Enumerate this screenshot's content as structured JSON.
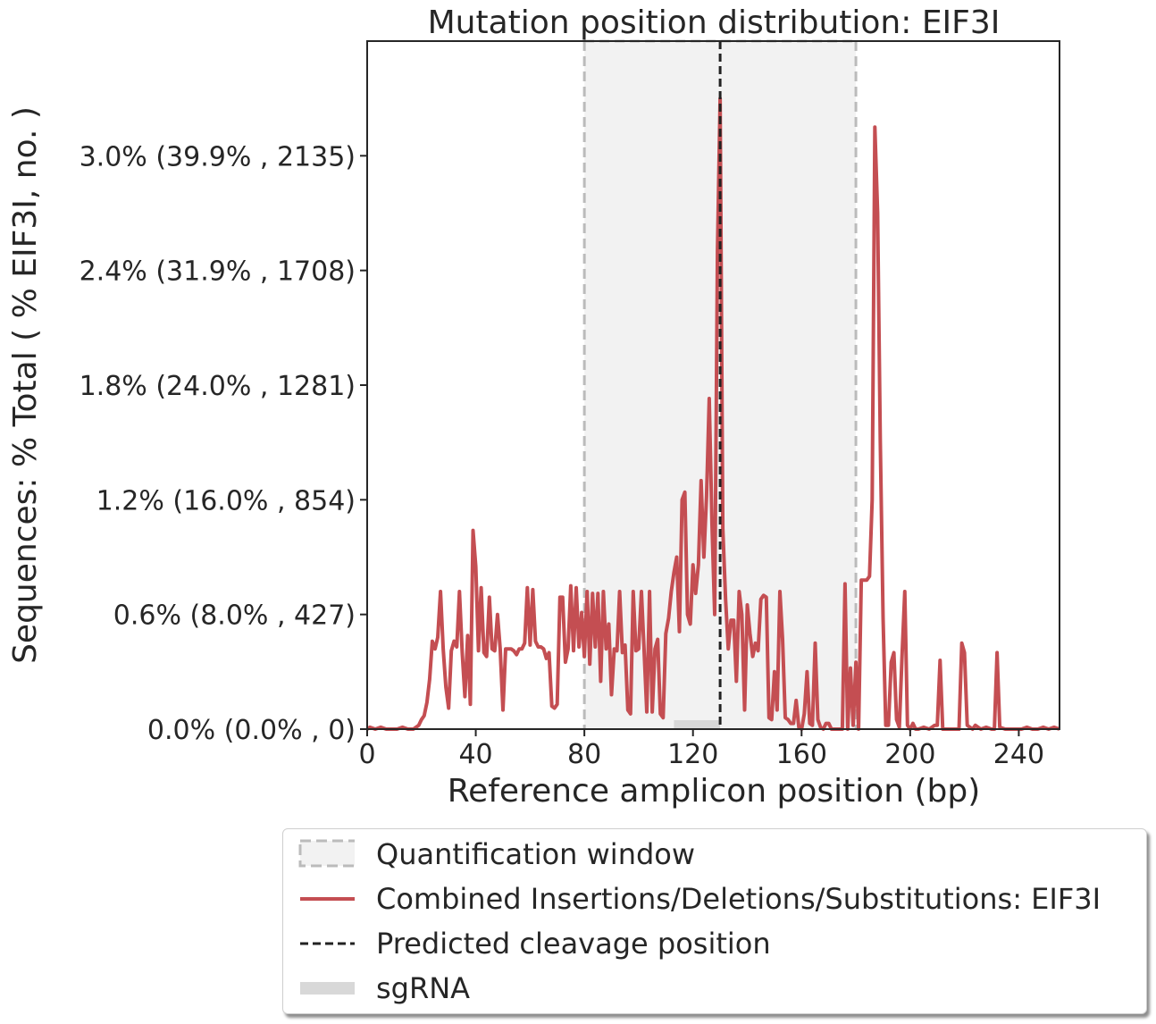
{
  "chart_data": {
    "type": "line",
    "title": "Mutation position distribution: EIF3I",
    "xlabel": "Reference amplicon position (bp)",
    "ylabel": "Sequences: % Total ( % EIF3I, no. )",
    "xlim": [
      0,
      255
    ],
    "ylim": [
      0,
      3.6
    ],
    "x_ticks": [
      0,
      40,
      80,
      120,
      160,
      200,
      240
    ],
    "y_ticks": [
      {
        "value": 0.0,
        "label": "0.0% (0.0% , 0)"
      },
      {
        "value": 0.6,
        "label": "0.6% (8.0% , 427)"
      },
      {
        "value": 1.2,
        "label": "1.2% (16.0% , 854)"
      },
      {
        "value": 1.8,
        "label": "1.8% (24.0% , 1281)"
      },
      {
        "value": 2.4,
        "label": "2.4% (31.9% , 1708)"
      },
      {
        "value": 3.0,
        "label": "3.0% (39.9% , 2135)"
      }
    ],
    "quantification_window": [
      80,
      180
    ],
    "predicted_cleavage": 130,
    "sgrna": [
      113,
      130
    ],
    "colors": {
      "series": "#c44e52",
      "window_fill": "#f2f2f2",
      "window_edge": "#bbbbbb",
      "cleavage": "#222222",
      "sgrna": "#d8d8d8"
    },
    "series": [
      {
        "name": "Combined Insertions/Deletions/Substitutions: EIF3I",
        "points": [
          [
            0,
            0.0
          ],
          [
            1,
            0.01
          ],
          [
            3,
            0.0
          ],
          [
            5,
            0.01
          ],
          [
            7,
            0.0
          ],
          [
            9,
            0.0
          ],
          [
            11,
            0.0
          ],
          [
            13,
            0.01
          ],
          [
            15,
            0.0
          ],
          [
            17,
            0.0
          ],
          [
            19,
            0.02
          ],
          [
            20,
            0.05
          ],
          [
            21,
            0.07
          ],
          [
            22,
            0.14
          ],
          [
            23,
            0.26
          ],
          [
            24,
            0.46
          ],
          [
            25,
            0.42
          ],
          [
            26,
            0.48
          ],
          [
            27,
            0.72
          ],
          [
            28,
            0.42
          ],
          [
            29,
            0.22
          ],
          [
            30,
            0.11
          ],
          [
            31,
            0.41
          ],
          [
            32,
            0.46
          ],
          [
            33,
            0.43
          ],
          [
            34,
            0.72
          ],
          [
            35,
            0.4
          ],
          [
            36,
            0.17
          ],
          [
            37,
            0.49
          ],
          [
            38,
            0.13
          ],
          [
            39,
            1.04
          ],
          [
            40,
            0.85
          ],
          [
            41,
            0.41
          ],
          [
            42,
            0.74
          ],
          [
            43,
            0.4
          ],
          [
            44,
            0.38
          ],
          [
            45,
            0.69
          ],
          [
            46,
            0.42
          ],
          [
            47,
            0.41
          ],
          [
            48,
            0.6
          ],
          [
            49,
            0.42
          ],
          [
            50,
            0.1
          ],
          [
            51,
            0.42
          ],
          [
            52,
            0.42
          ],
          [
            53,
            0.42
          ],
          [
            54,
            0.41
          ],
          [
            55,
            0.39
          ],
          [
            56,
            0.42
          ],
          [
            57,
            0.42
          ],
          [
            58,
            0.45
          ],
          [
            59,
            0.74
          ],
          [
            60,
            0.44
          ],
          [
            61,
            0.73
          ],
          [
            62,
            0.46
          ],
          [
            63,
            0.43
          ],
          [
            64,
            0.43
          ],
          [
            65,
            0.42
          ],
          [
            66,
            0.37
          ],
          [
            67,
            0.4
          ],
          [
            68,
            0.12
          ],
          [
            69,
            0.11
          ],
          [
            70,
            0.13
          ],
          [
            71,
            0.69
          ],
          [
            72,
            0.69
          ],
          [
            73,
            0.35
          ],
          [
            74,
            0.42
          ],
          [
            75,
            0.75
          ],
          [
            76,
            0.41
          ],
          [
            77,
            0.74
          ],
          [
            78,
            0.43
          ],
          [
            79,
            0.61
          ],
          [
            80,
            0.38
          ],
          [
            81,
            0.72
          ],
          [
            82,
            0.34
          ],
          [
            83,
            0.71
          ],
          [
            84,
            0.43
          ],
          [
            85,
            0.71
          ],
          [
            86,
            0.25
          ],
          [
            87,
            0.72
          ],
          [
            88,
            0.42
          ],
          [
            89,
            0.55
          ],
          [
            90,
            0.18
          ],
          [
            91,
            0.42
          ],
          [
            92,
            0.41
          ],
          [
            93,
            0.72
          ],
          [
            94,
            0.4
          ],
          [
            95,
            0.44
          ],
          [
            96,
            0.1
          ],
          [
            97,
            0.08
          ],
          [
            98,
            0.72
          ],
          [
            99,
            0.41
          ],
          [
            100,
            0.42
          ],
          [
            101,
            0.72
          ],
          [
            102,
            0.41
          ],
          [
            103,
            0.09
          ],
          [
            104,
            0.72
          ],
          [
            105,
            0.09
          ],
          [
            106,
            0.42
          ],
          [
            107,
            0.47
          ],
          [
            108,
            0.08
          ],
          [
            109,
            0.06
          ],
          [
            110,
            0.5
          ],
          [
            111,
            0.58
          ],
          [
            112,
            0.72
          ],
          [
            113,
            0.82
          ],
          [
            114,
            0.9
          ],
          [
            115,
            0.51
          ],
          [
            116,
            1.2
          ],
          [
            117,
            1.24
          ],
          [
            118,
            0.6
          ],
          [
            119,
            0.55
          ],
          [
            120,
            0.86
          ],
          [
            121,
            0.71
          ],
          [
            122,
            0.86
          ],
          [
            123,
            1.3
          ],
          [
            124,
            0.9
          ],
          [
            125,
            1.22
          ],
          [
            126,
            1.73
          ],
          [
            127,
            1.07
          ],
          [
            128,
            0.6
          ],
          [
            129,
            2.5
          ],
          [
            130,
            3.3
          ],
          [
            131,
            1.05
          ],
          [
            132,
            0.68
          ],
          [
            133,
            0.42
          ],
          [
            134,
            0.57
          ],
          [
            135,
            0.57
          ],
          [
            136,
            0.25
          ],
          [
            137,
            0.72
          ],
          [
            138,
            0.6
          ],
          [
            139,
            0.1
          ],
          [
            140,
            0.65
          ],
          [
            141,
            0.5
          ],
          [
            142,
            0.38
          ],
          [
            143,
            0.45
          ],
          [
            144,
            0.41
          ],
          [
            145,
            0.68
          ],
          [
            146,
            0.7
          ],
          [
            147,
            0.69
          ],
          [
            148,
            0.06
          ],
          [
            149,
            0.05
          ],
          [
            150,
            0.3
          ],
          [
            151,
            0.1
          ],
          [
            152,
            0.72
          ],
          [
            153,
            0.47
          ],
          [
            154,
            0.06
          ],
          [
            155,
            0.05
          ],
          [
            156,
            0.03
          ],
          [
            157,
            0.03
          ],
          [
            158,
            0.15
          ],
          [
            159,
            0.01
          ],
          [
            160,
            0.0
          ],
          [
            161,
            0.08
          ],
          [
            162,
            0.3
          ],
          [
            163,
            0.03
          ],
          [
            164,
            0.02
          ],
          [
            165,
            0.45
          ],
          [
            166,
            0.05
          ],
          [
            167,
            0.01
          ],
          [
            168,
            0.0
          ],
          [
            169,
            0.03
          ],
          [
            170,
            0.03
          ],
          [
            171,
            0.0
          ],
          [
            172,
            0.0
          ],
          [
            173,
            0.0
          ],
          [
            174,
            0.0
          ],
          [
            175,
            0.0
          ],
          [
            176,
            0.76
          ],
          [
            177,
            0.0
          ],
          [
            178,
            0.32
          ],
          [
            179,
            0.02
          ],
          [
            180,
            0.35
          ],
          [
            181,
            0.0
          ],
          [
            182,
            0.78
          ],
          [
            183,
            0.78
          ],
          [
            184,
            0.78
          ],
          [
            185,
            0.8
          ],
          [
            186,
            1.2
          ],
          [
            187,
            3.15
          ],
          [
            188,
            2.7
          ],
          [
            189,
            1.5
          ],
          [
            190,
            0.58
          ],
          [
            191,
            0.02
          ],
          [
            192,
            0.02
          ],
          [
            193,
            0.35
          ],
          [
            194,
            0.4
          ],
          [
            195,
            0.05
          ],
          [
            196,
            0.01
          ],
          [
            197,
            0.38
          ],
          [
            198,
            0.72
          ],
          [
            199,
            0.02
          ],
          [
            200,
            0.0
          ],
          [
            201,
            0.03
          ],
          [
            202,
            0.0
          ],
          [
            203,
            0.0
          ],
          [
            205,
            0.01
          ],
          [
            207,
            0.0
          ],
          [
            209,
            0.02
          ],
          [
            210,
            0.02
          ],
          [
            211,
            0.36
          ],
          [
            212,
            0.0
          ],
          [
            214,
            0.0
          ],
          [
            216,
            0.0
          ],
          [
            218,
            0.0
          ],
          [
            219,
            0.45
          ],
          [
            220,
            0.4
          ],
          [
            221,
            0.02
          ],
          [
            223,
            0.0
          ],
          [
            224,
            0.02
          ],
          [
            226,
            0.0
          ],
          [
            228,
            0.01
          ],
          [
            230,
            0.0
          ],
          [
            231,
            0.0
          ],
          [
            232,
            0.4
          ],
          [
            233,
            0.01
          ],
          [
            235,
            0.0
          ],
          [
            237,
            0.0
          ],
          [
            239,
            0.0
          ],
          [
            241,
            0.0
          ],
          [
            243,
            0.01
          ],
          [
            245,
            0.0
          ],
          [
            247,
            0.0
          ],
          [
            249,
            0.01
          ],
          [
            251,
            0.0
          ],
          [
            253,
            0.01
          ],
          [
            255,
            0.0
          ]
        ]
      }
    ],
    "legend": {
      "placement": "bottom",
      "entries": [
        {
          "label": "Quantification window"
        },
        {
          "label": "Combined Insertions/Deletions/Substitutions: EIF3I"
        },
        {
          "label": "Predicted cleavage position"
        },
        {
          "label": "sgRNA"
        }
      ]
    }
  }
}
